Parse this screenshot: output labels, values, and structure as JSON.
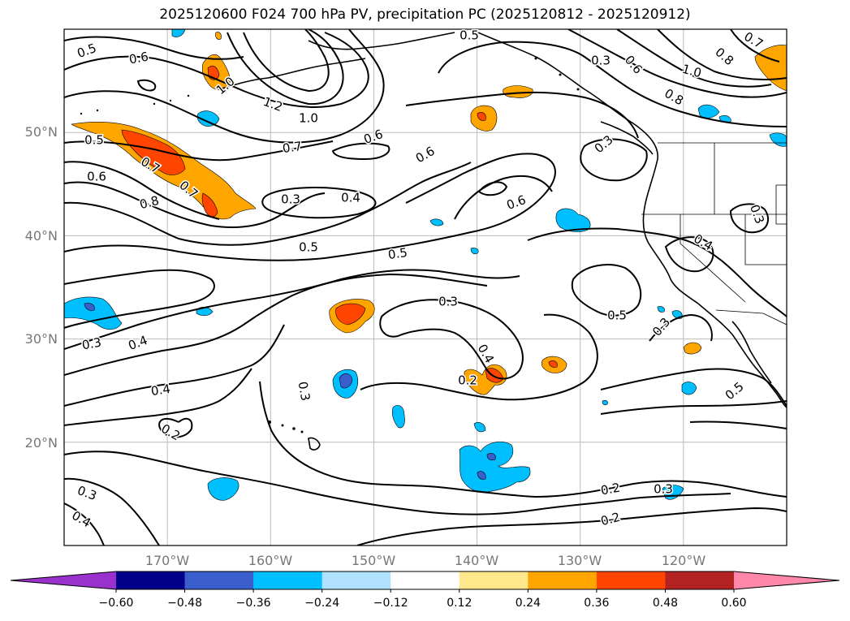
{
  "title": "2025120600 F024 700 hPa PV, precipitation PC (2025120812 - 2025120912)",
  "chart_data": {
    "type": "map",
    "fields": [
      {
        "name": "700 hPa PV",
        "render": "black contours"
      },
      {
        "name": "precipitation PC",
        "render": "filled color shading"
      }
    ],
    "lon_range": [
      -180,
      -110
    ],
    "lat_range": [
      10,
      60
    ],
    "lon_ticks": [
      "170°W",
      "160°W",
      "150°W",
      "140°W",
      "130°W",
      "120°W"
    ],
    "lat_ticks": [
      "50°N",
      "40°N",
      "30°N",
      "20°N"
    ],
    "contour_labels": [
      "0.5",
      "0.6",
      "1.0",
      "0.5",
      "0.7",
      "0.6",
      "0.8",
      "1.2",
      "1.0",
      "0.7",
      "0.6",
      "0.6",
      "0.3",
      "0.4",
      "0.5",
      "0.5",
      "0.6",
      "0.3",
      "0.7",
      "0.3",
      "0.4",
      "0.4",
      "0.2",
      "0.3",
      "0.4",
      "0.3",
      "0.4",
      "0.2",
      "0.5",
      "0.3",
      "0.4",
      "0.3",
      "0.2",
      "0.2",
      "0.3",
      "0.5",
      "0.3",
      "1.0",
      "0.8",
      "0.6",
      "0.7",
      "0.8",
      "0.5",
      "0.3"
    ],
    "colorbar": {
      "levels": [
        -0.6,
        -0.48,
        -0.36,
        -0.24,
        -0.12,
        0.12,
        0.24,
        0.36,
        0.48,
        0.6
      ],
      "tick_labels": [
        "−0.60",
        "−0.48",
        "−0.36",
        "−0.24",
        "−0.12",
        "0.12",
        "0.24",
        "0.36",
        "0.48",
        "0.60"
      ],
      "colors": [
        "#9932cc",
        "#00008b",
        "#3a5fcd",
        "#00bfff",
        "#b0e2ff",
        "#ffffff",
        "#ffe78b",
        "#ffa500",
        "#ff4500",
        "#b22222",
        "#ff88aa"
      ],
      "extend": "both"
    }
  }
}
